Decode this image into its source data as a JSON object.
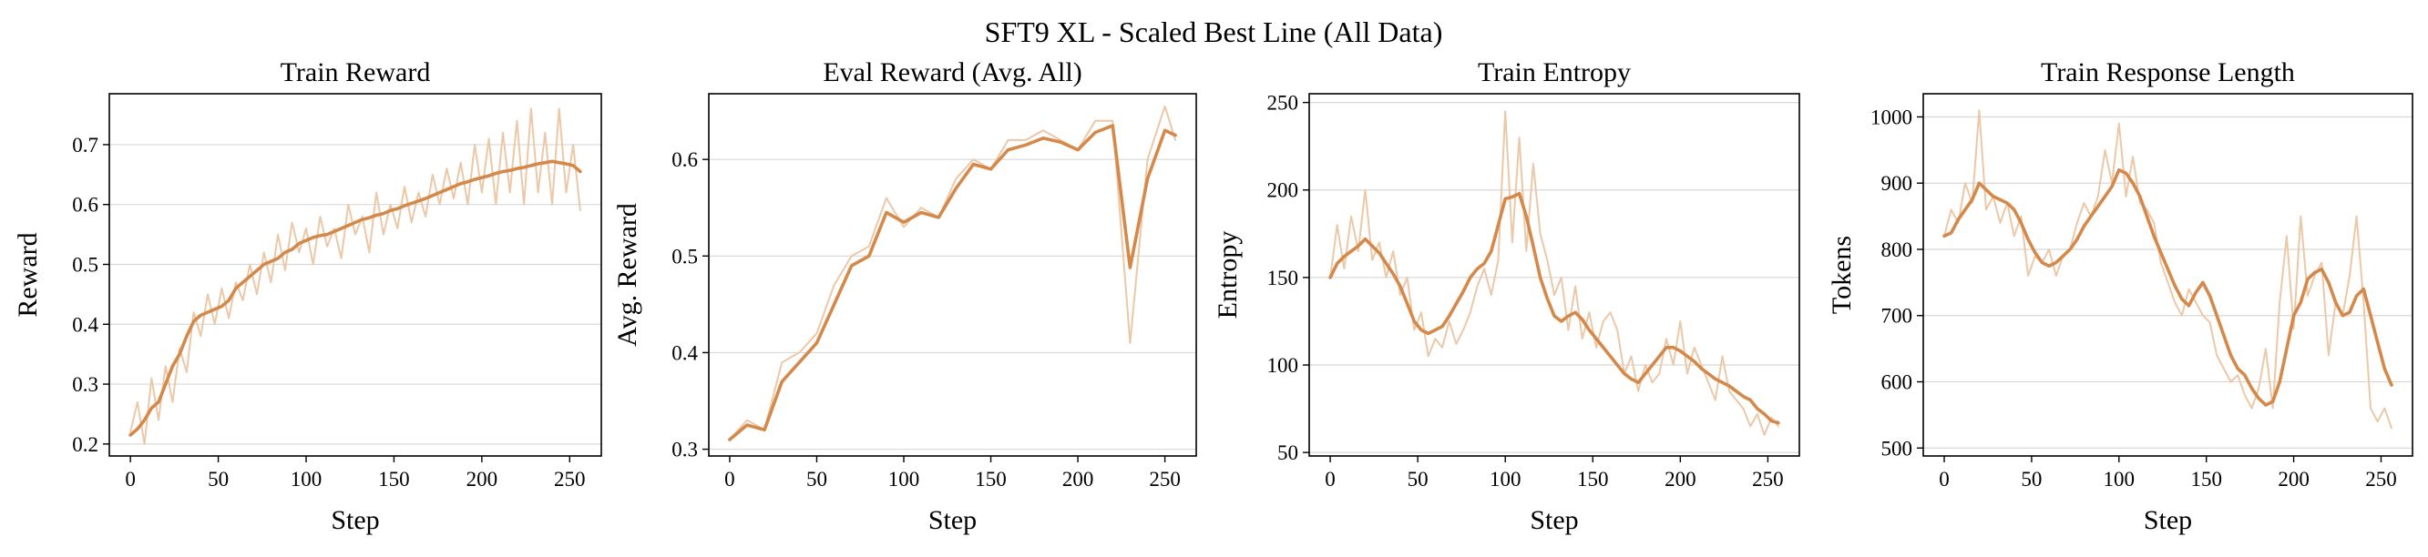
{
  "figure": {
    "title": "SFT9 XL - Scaled Best Line (All Data)",
    "colors": {
      "smooth": "#D4894A",
      "raw": "#EBC8A8",
      "grid": "#D8D8D8",
      "axis": "#000000"
    }
  },
  "chart_data": [
    {
      "type": "line",
      "title": "Train Reward",
      "xlabel": "Step",
      "ylabel": "Reward",
      "xlim": [
        -12,
        268
      ],
      "ylim": [
        0.18,
        0.785
      ],
      "xticks": [
        0,
        50,
        100,
        150,
        200,
        250
      ],
      "yticks": [
        0.2,
        0.3,
        0.4,
        0.5,
        0.6,
        0.7
      ],
      "ytick_labels": [
        "0.2",
        "0.3",
        "0.4",
        "0.5",
        "0.6",
        "0.7"
      ],
      "grid": "y",
      "series": [
        {
          "name": "raw",
          "x": [
            0,
            4,
            8,
            12,
            16,
            20,
            24,
            28,
            32,
            36,
            40,
            44,
            48,
            52,
            56,
            60,
            64,
            68,
            72,
            76,
            80,
            84,
            88,
            92,
            96,
            100,
            104,
            108,
            112,
            116,
            120,
            124,
            128,
            132,
            136,
            140,
            144,
            148,
            152,
            156,
            160,
            164,
            168,
            172,
            176,
            180,
            184,
            188,
            192,
            196,
            200,
            204,
            208,
            212,
            216,
            220,
            224,
            228,
            232,
            236,
            240,
            244,
            248,
            252,
            256
          ],
          "values": [
            0.22,
            0.27,
            0.2,
            0.31,
            0.24,
            0.33,
            0.27,
            0.36,
            0.32,
            0.42,
            0.38,
            0.45,
            0.4,
            0.46,
            0.41,
            0.47,
            0.44,
            0.5,
            0.45,
            0.52,
            0.47,
            0.55,
            0.49,
            0.57,
            0.52,
            0.56,
            0.5,
            0.58,
            0.53,
            0.56,
            0.51,
            0.6,
            0.55,
            0.58,
            0.52,
            0.62,
            0.55,
            0.6,
            0.56,
            0.63,
            0.57,
            0.62,
            0.58,
            0.65,
            0.6,
            0.66,
            0.61,
            0.67,
            0.6,
            0.7,
            0.62,
            0.71,
            0.6,
            0.72,
            0.62,
            0.74,
            0.6,
            0.76,
            0.62,
            0.72,
            0.6,
            0.76,
            0.62,
            0.7,
            0.59
          ]
        },
        {
          "name": "smoothed",
          "x": [
            0,
            4,
            8,
            12,
            16,
            20,
            24,
            28,
            32,
            36,
            40,
            44,
            48,
            52,
            56,
            60,
            64,
            68,
            72,
            76,
            80,
            84,
            88,
            92,
            96,
            100,
            104,
            108,
            112,
            116,
            120,
            124,
            128,
            132,
            136,
            140,
            144,
            148,
            152,
            156,
            160,
            164,
            168,
            172,
            176,
            180,
            184,
            188,
            192,
            196,
            200,
            204,
            208,
            212,
            216,
            220,
            224,
            228,
            232,
            236,
            240,
            244,
            248,
            252,
            256
          ],
          "values": [
            0.215,
            0.225,
            0.24,
            0.26,
            0.27,
            0.3,
            0.33,
            0.35,
            0.38,
            0.405,
            0.415,
            0.42,
            0.425,
            0.43,
            0.44,
            0.46,
            0.47,
            0.48,
            0.49,
            0.5,
            0.505,
            0.51,
            0.52,
            0.525,
            0.535,
            0.54,
            0.545,
            0.548,
            0.55,
            0.555,
            0.56,
            0.565,
            0.57,
            0.575,
            0.578,
            0.582,
            0.585,
            0.59,
            0.593,
            0.598,
            0.602,
            0.606,
            0.61,
            0.615,
            0.62,
            0.625,
            0.63,
            0.635,
            0.638,
            0.642,
            0.645,
            0.648,
            0.652,
            0.655,
            0.657,
            0.66,
            0.662,
            0.665,
            0.668,
            0.67,
            0.672,
            0.67,
            0.668,
            0.665,
            0.655
          ]
        }
      ]
    },
    {
      "type": "line",
      "title": "Eval Reward (Avg. All)",
      "xlabel": "Step",
      "ylabel": "Avg. Reward",
      "xlim": [
        -12,
        268
      ],
      "ylim": [
        0.293,
        0.668
      ],
      "xticks": [
        0,
        50,
        100,
        150,
        200,
        250
      ],
      "yticks": [
        0.3,
        0.4,
        0.5,
        0.6
      ],
      "ytick_labels": [
        "0.3",
        "0.4",
        "0.5",
        "0.6"
      ],
      "grid": "y",
      "series": [
        {
          "name": "raw",
          "x": [
            0,
            10,
            20,
            30,
            40,
            50,
            60,
            70,
            80,
            90,
            100,
            110,
            120,
            130,
            140,
            150,
            160,
            170,
            180,
            190,
            200,
            210,
            220,
            230,
            240,
            250,
            256
          ],
          "values": [
            0.31,
            0.33,
            0.32,
            0.39,
            0.4,
            0.42,
            0.47,
            0.5,
            0.51,
            0.56,
            0.53,
            0.55,
            0.54,
            0.58,
            0.6,
            0.59,
            0.62,
            0.62,
            0.63,
            0.62,
            0.61,
            0.64,
            0.64,
            0.41,
            0.6,
            0.655,
            0.62
          ]
        },
        {
          "name": "smoothed",
          "x": [
            0,
            10,
            20,
            30,
            40,
            50,
            60,
            70,
            80,
            90,
            100,
            110,
            120,
            130,
            140,
            150,
            160,
            170,
            180,
            190,
            200,
            210,
            220,
            230,
            240,
            250,
            256
          ],
          "values": [
            0.31,
            0.325,
            0.32,
            0.37,
            0.39,
            0.41,
            0.45,
            0.49,
            0.5,
            0.545,
            0.535,
            0.545,
            0.54,
            0.57,
            0.595,
            0.59,
            0.61,
            0.615,
            0.622,
            0.618,
            0.61,
            0.628,
            0.635,
            0.488,
            0.58,
            0.63,
            0.625
          ]
        }
      ]
    },
    {
      "type": "line",
      "title": "Train Entropy",
      "xlabel": "Step",
      "ylabel": "Entropy",
      "xlim": [
        -12,
        268
      ],
      "ylim": [
        48,
        255
      ],
      "xticks": [
        0,
        50,
        100,
        150,
        200,
        250
      ],
      "yticks": [
        50,
        100,
        150,
        200,
        250
      ],
      "ytick_labels": [
        "50",
        "100",
        "150",
        "200",
        "250"
      ],
      "grid": "y",
      "series": [
        {
          "name": "raw",
          "x": [
            0,
            4,
            8,
            12,
            16,
            20,
            24,
            28,
            32,
            36,
            40,
            44,
            48,
            52,
            56,
            60,
            64,
            68,
            72,
            76,
            80,
            84,
            88,
            92,
            96,
            100,
            104,
            108,
            112,
            116,
            120,
            124,
            128,
            132,
            136,
            140,
            144,
            148,
            152,
            156,
            160,
            164,
            168,
            172,
            176,
            180,
            184,
            188,
            192,
            196,
            200,
            204,
            208,
            212,
            216,
            220,
            224,
            228,
            232,
            236,
            240,
            244,
            248,
            252,
            256
          ],
          "values": [
            150,
            180,
            155,
            185,
            165,
            200,
            160,
            170,
            150,
            165,
            140,
            150,
            120,
            130,
            105,
            115,
            110,
            125,
            112,
            120,
            130,
            145,
            155,
            140,
            160,
            245,
            170,
            230,
            165,
            215,
            175,
            160,
            140,
            150,
            120,
            145,
            115,
            130,
            110,
            125,
            130,
            120,
            95,
            105,
            85,
            100,
            90,
            95,
            115,
            100,
            125,
            95,
            110,
            100,
            90,
            80,
            105,
            85,
            80,
            75,
            65,
            72,
            60,
            70,
            65
          ]
        },
        {
          "name": "smoothed",
          "x": [
            0,
            4,
            8,
            12,
            16,
            20,
            24,
            28,
            32,
            36,
            40,
            44,
            48,
            52,
            56,
            60,
            64,
            68,
            72,
            76,
            80,
            84,
            88,
            92,
            96,
            100,
            104,
            108,
            112,
            116,
            120,
            124,
            128,
            132,
            136,
            140,
            144,
            148,
            152,
            156,
            160,
            164,
            168,
            172,
            176,
            180,
            184,
            188,
            192,
            196,
            200,
            204,
            208,
            212,
            216,
            220,
            224,
            228,
            232,
            236,
            240,
            244,
            248,
            252,
            256
          ],
          "values": [
            150,
            158,
            162,
            165,
            168,
            172,
            168,
            164,
            158,
            152,
            145,
            135,
            125,
            120,
            118,
            120,
            122,
            128,
            135,
            142,
            150,
            155,
            158,
            165,
            180,
            195,
            196,
            198,
            185,
            168,
            150,
            138,
            128,
            125,
            128,
            130,
            126,
            120,
            115,
            110,
            105,
            100,
            95,
            92,
            90,
            95,
            100,
            105,
            110,
            110,
            108,
            105,
            102,
            98,
            95,
            92,
            90,
            88,
            85,
            82,
            80,
            75,
            72,
            68,
            67
          ]
        }
      ]
    },
    {
      "type": "line",
      "title": "Train Response Length",
      "xlabel": "Step",
      "ylabel": "Tokens",
      "xlim": [
        -12,
        268
      ],
      "ylim": [
        488,
        1035
      ],
      "xticks": [
        0,
        50,
        100,
        150,
        200,
        250
      ],
      "yticks": [
        500,
        600,
        700,
        800,
        900,
        1000
      ],
      "ytick_labels": [
        "500",
        "600",
        "700",
        "800",
        "900",
        "1000"
      ],
      "grid": "y",
      "series": [
        {
          "name": "raw",
          "x": [
            0,
            4,
            8,
            12,
            16,
            20,
            24,
            28,
            32,
            36,
            40,
            44,
            48,
            52,
            56,
            60,
            64,
            68,
            72,
            76,
            80,
            84,
            88,
            92,
            96,
            100,
            104,
            108,
            112,
            116,
            120,
            124,
            128,
            132,
            136,
            140,
            144,
            148,
            152,
            156,
            160,
            164,
            168,
            172,
            176,
            180,
            184,
            188,
            192,
            196,
            200,
            204,
            208,
            212,
            216,
            220,
            224,
            228,
            232,
            236,
            240,
            244,
            248,
            252,
            256
          ],
          "values": [
            820,
            860,
            840,
            900,
            870,
            1010,
            860,
            880,
            840,
            870,
            820,
            850,
            760,
            790,
            780,
            800,
            760,
            790,
            800,
            840,
            870,
            850,
            880,
            950,
            900,
            990,
            880,
            940,
            870,
            860,
            840,
            780,
            750,
            720,
            700,
            740,
            720,
            700,
            690,
            640,
            620,
            600,
            610,
            580,
            560,
            590,
            650,
            560,
            720,
            820,
            680,
            850,
            730,
            760,
            780,
            640,
            720,
            700,
            760,
            850,
            720,
            560,
            540,
            560,
            530
          ]
        },
        {
          "name": "smoothed",
          "x": [
            0,
            4,
            8,
            12,
            16,
            20,
            24,
            28,
            32,
            36,
            40,
            44,
            48,
            52,
            56,
            60,
            64,
            68,
            72,
            76,
            80,
            84,
            88,
            92,
            96,
            100,
            104,
            108,
            112,
            116,
            120,
            124,
            128,
            132,
            136,
            140,
            144,
            148,
            152,
            156,
            160,
            164,
            168,
            172,
            176,
            180,
            184,
            188,
            192,
            196,
            200,
            204,
            208,
            212,
            216,
            220,
            224,
            228,
            232,
            236,
            240,
            244,
            248,
            252,
            256
          ],
          "values": [
            820,
            825,
            845,
            860,
            875,
            900,
            890,
            880,
            875,
            870,
            860,
            840,
            815,
            795,
            780,
            775,
            780,
            790,
            800,
            815,
            835,
            850,
            865,
            880,
            895,
            920,
            915,
            900,
            880,
            850,
            820,
            795,
            770,
            745,
            725,
            715,
            735,
            750,
            730,
            700,
            670,
            640,
            620,
            610,
            590,
            575,
            565,
            570,
            600,
            650,
            700,
            720,
            755,
            765,
            770,
            750,
            720,
            700,
            705,
            730,
            740,
            700,
            660,
            620,
            595
          ]
        }
      ]
    }
  ]
}
